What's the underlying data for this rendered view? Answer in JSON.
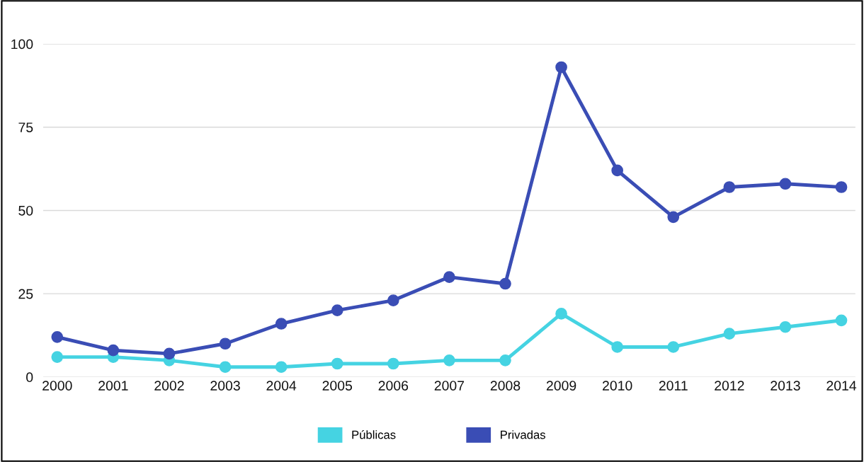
{
  "chart_data": {
    "type": "line",
    "categories": [
      "2000",
      "2001",
      "2002",
      "2003",
      "2004",
      "2005",
      "2006",
      "2007",
      "2008",
      "2009",
      "2010",
      "2011",
      "2012",
      "2013",
      "2014"
    ],
    "series": [
      {
        "name": "Públicas",
        "color": "#45d3e2",
        "values": [
          6,
          6,
          5,
          3,
          3,
          4,
          4,
          5,
          5,
          19,
          9,
          9,
          13,
          15,
          17
        ]
      },
      {
        "name": "Privadas",
        "color": "#3a4db5",
        "values": [
          12,
          8,
          7,
          10,
          16,
          20,
          23,
          30,
          28,
          93,
          62,
          48,
          57,
          58,
          57
        ]
      }
    ],
    "ylim": [
      0,
      100
    ],
    "yticks": [
      0,
      25,
      50,
      75,
      100
    ],
    "grid": "y",
    "legend": "bottom",
    "marker": "circle",
    "line_style": "solid"
  }
}
